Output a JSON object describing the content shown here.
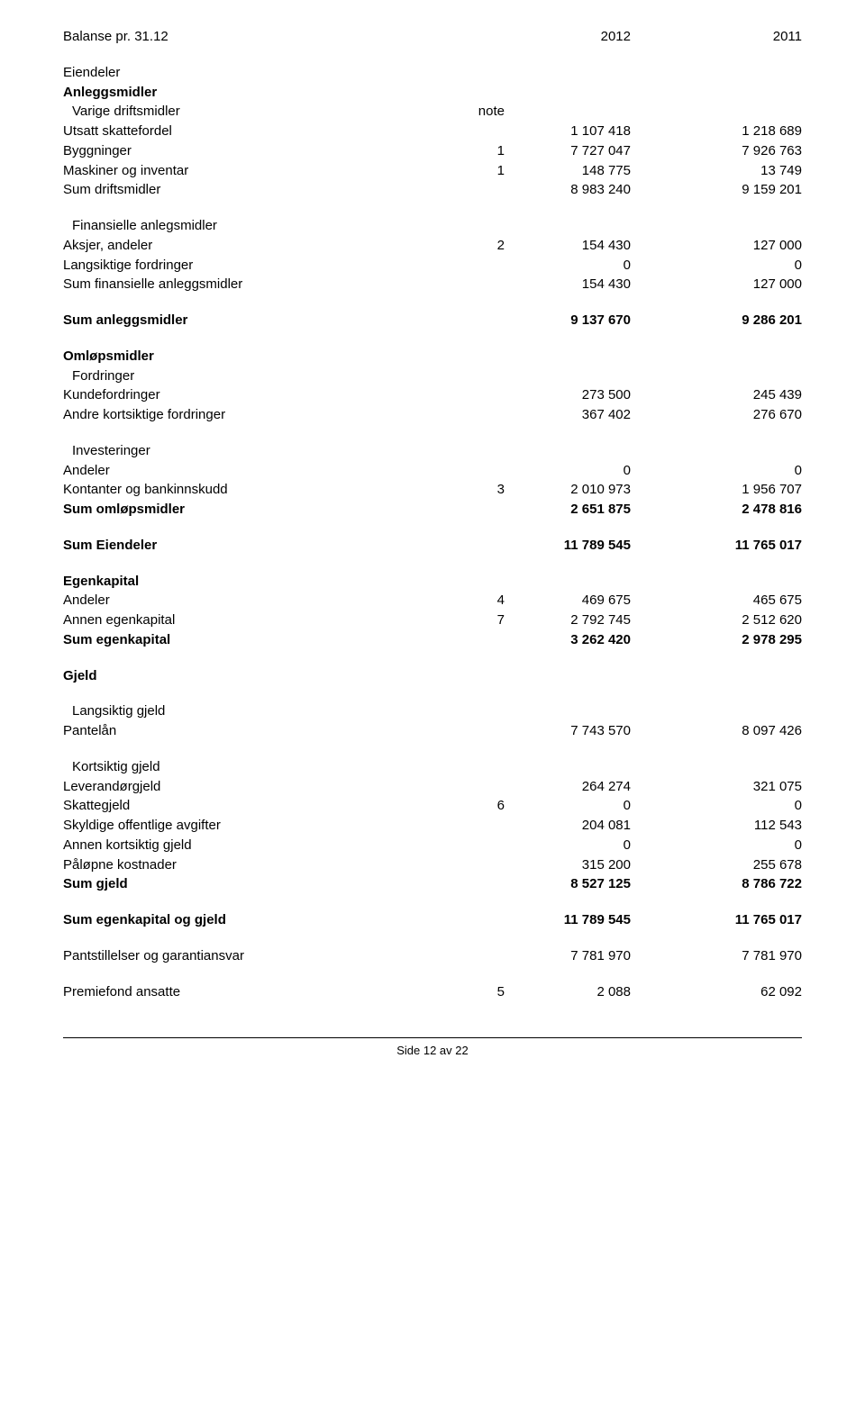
{
  "header": {
    "title": "Balanse pr. 31.12",
    "col1": "2012",
    "col2": "2011"
  },
  "sections": {
    "eiendeler": "Eiendeler",
    "anleggsmidler": "Anleggsmidler",
    "varige": "Varige driftsmidler",
    "note": "note",
    "utsatt": {
      "label": "Utsatt skattefordel",
      "v1": "1 107 418",
      "v2": "1 218 689"
    },
    "bygg": {
      "label": "Byggninger",
      "n": "1",
      "v1": "7 727 047",
      "v2": "7 926 763"
    },
    "mask": {
      "label": "Maskiner og inventar",
      "n": "1",
      "v1": "148 775",
      "v2": "13 749"
    },
    "sumdrift": {
      "label": "Sum driftsmidler",
      "v1": "8 983 240",
      "v2": "9 159 201"
    },
    "finanleg": "Finansielle anlegsmidler",
    "aksjer": {
      "label": "Aksjer, andeler",
      "n": "2",
      "v1": "154 430",
      "v2": "127 000"
    },
    "langford": {
      "label": "Langsiktige fordringer",
      "v1": "0",
      "v2": "0"
    },
    "sumfin": {
      "label": "Sum finansielle anleggsmidler",
      "v1": "154 430",
      "v2": "127 000"
    },
    "sumanlegg": {
      "label": "Sum anleggsmidler",
      "v1": "9 137 670",
      "v2": "9 286 201"
    },
    "omlop": "Omløpsmidler",
    "fordringer": "Fordringer",
    "kunde": {
      "label": "Kundefordringer",
      "v1": "273 500",
      "v2": "245 439"
    },
    "andrekort": {
      "label": "Andre kortsiktige fordringer",
      "v1": "367 402",
      "v2": "276 670"
    },
    "invest": "Investeringer",
    "andeler": {
      "label": "Andeler",
      "v1": "0",
      "v2": "0"
    },
    "kontant": {
      "label": "Kontanter og bankinnskudd",
      "n": "3",
      "v1": "2 010 973",
      "v2": "1 956 707"
    },
    "sumoml": {
      "label": "Sum omløpsmidler",
      "v1": "2 651 875",
      "v2": "2 478 816"
    },
    "sumeien": {
      "label": "Sum Eiendeler",
      "v1": "11 789 545",
      "v2": "11 765 017"
    },
    "egenkapital": "Egenkapital",
    "eg_and": {
      "label": "Andeler",
      "n": "4",
      "v1": "469 675",
      "v2": "465 675"
    },
    "eg_ann": {
      "label": "Annen egenkapital",
      "n": "7",
      "v1": "2 792 745",
      "v2": "2 512 620"
    },
    "sum_eg": {
      "label": "Sum egenkapital",
      "v1": "3 262 420",
      "v2": "2 978 295"
    },
    "gjeld": "Gjeld",
    "langgjeld": "Langsiktig gjeld",
    "pantelan": {
      "label": "Pantelån",
      "v1": "7 743 570",
      "v2": "8 097 426"
    },
    "kortgjeld": "Kortsiktig gjeld",
    "levgjeld": {
      "label": "Leverandørgjeld",
      "v1": "264 274",
      "v2": "321 075"
    },
    "skattegj": {
      "label": "Skattegjeld",
      "n": "6",
      "v1": "0",
      "v2": "0"
    },
    "skyldoff": {
      "label": "Skyldige offentlige avgifter",
      "v1": "204 081",
      "v2": "112 543"
    },
    "annkort": {
      "label": "Annen kortsiktig gjeld",
      "v1": "0",
      "v2": "0"
    },
    "palop": {
      "label": "Påløpne kostnader",
      "v1": "315 200",
      "v2": "255 678"
    },
    "sumgjeld": {
      "label": "Sum gjeld",
      "v1": "8 527 125",
      "v2": "8 786 722"
    },
    "sumegogj": {
      "label": "Sum egenkapital og gjeld",
      "v1": "11 789 545",
      "v2": "11 765 017"
    },
    "pant": {
      "label": "Pantstillelser og garantiansvar",
      "v1": "7 781 970",
      "v2": "7 781 970"
    },
    "premie": {
      "label": "Premiefond ansatte",
      "n": "5",
      "v1": "2 088",
      "v2": "62 092"
    }
  },
  "footer": "Side 12 av 22"
}
